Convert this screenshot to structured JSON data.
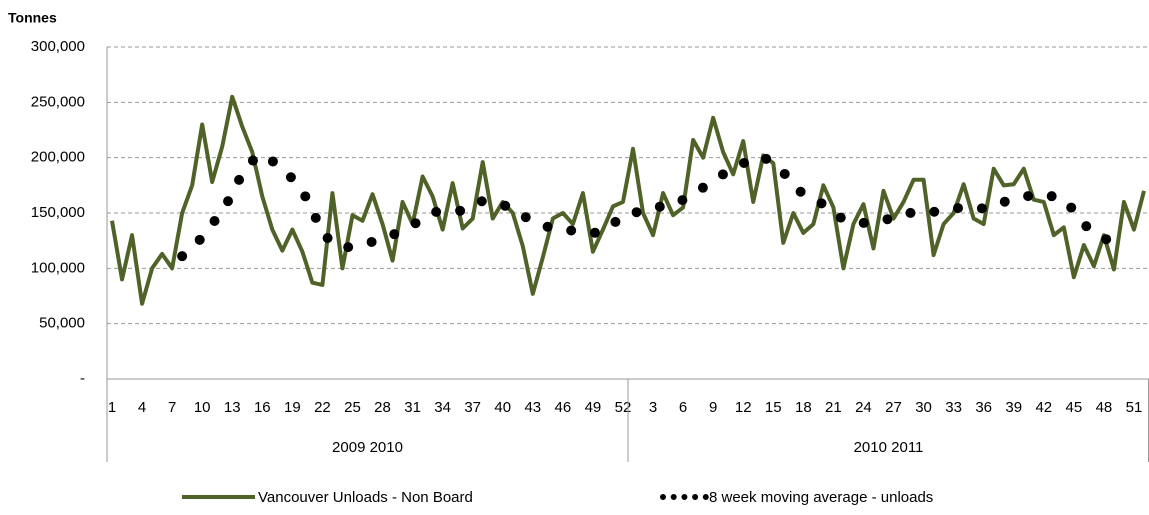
{
  "chart_data": {
    "type": "line",
    "y_label": "Tonnes",
    "ylim": [
      0,
      300000
    ],
    "yticks": [
      {
        "value": 0,
        "label": "-"
      },
      {
        "value": 50000,
        "label": "50,000"
      },
      {
        "value": 100000,
        "label": "100,000"
      },
      {
        "value": 150000,
        "label": "150,000"
      },
      {
        "value": 200000,
        "label": "200,000"
      },
      {
        "value": 250000,
        "label": "250,000"
      },
      {
        "value": 300000,
        "label": "300,000"
      }
    ],
    "grid": true,
    "legend": "bottom",
    "groups": [
      "2009 2010",
      "2010 2011"
    ],
    "categories": [
      "1",
      null,
      null,
      "4",
      null,
      null,
      "7",
      null,
      null,
      "10",
      null,
      null,
      "13",
      null,
      null,
      "16",
      null,
      null,
      "19",
      null,
      null,
      "22",
      null,
      null,
      "25",
      null,
      null,
      "28",
      null,
      null,
      "31",
      null,
      null,
      "34",
      null,
      null,
      "37",
      null,
      null,
      "40",
      null,
      null,
      "43",
      null,
      null,
      "46",
      null,
      null,
      "49",
      null,
      null,
      "52",
      null,
      null,
      "3",
      null,
      null,
      "6",
      null,
      null,
      "9",
      null,
      null,
      "12",
      null,
      null,
      "15",
      null,
      null,
      "18",
      null,
      null,
      "21",
      null,
      null,
      "24",
      null,
      null,
      "27",
      null,
      null,
      "30",
      null,
      null,
      "33",
      null,
      null,
      "36",
      null,
      null,
      "39",
      null,
      null,
      "42",
      null,
      null,
      "45",
      null,
      null,
      "48",
      null,
      null,
      "51",
      null
    ],
    "series": [
      {
        "name": "Vancouver Unloads - Non Board",
        "color": "#4f6228",
        "style": "solid",
        "values": [
          143000,
          90000,
          130000,
          68000,
          100000,
          113000,
          100000,
          150000,
          175000,
          230000,
          178000,
          210000,
          255000,
          228000,
          205000,
          165000,
          135000,
          116000,
          135000,
          115000,
          87000,
          85000,
          168000,
          100000,
          148000,
          143000,
          167000,
          140000,
          107000,
          160000,
          140000,
          183000,
          165000,
          135000,
          177000,
          136000,
          145000,
          196000,
          145000,
          160000,
          150000,
          120000,
          77000,
          110000,
          145000,
          150000,
          140000,
          168000,
          115000,
          135000,
          156000,
          160000,
          208000,
          150000,
          130000,
          168000,
          148000,
          155000,
          216000,
          200000,
          236000,
          205000,
          185000,
          215000,
          160000,
          202000,
          195000,
          123000,
          150000,
          132000,
          140000,
          175000,
          155000,
          100000,
          140000,
          158000,
          118000,
          170000,
          145000,
          160000,
          180000,
          180000,
          112000,
          140000,
          150000,
          176000,
          145000,
          140000,
          190000,
          175000,
          176000,
          190000,
          162000,
          160000,
          130000,
          137000,
          92000,
          121000,
          102000,
          130000,
          99000,
          160000,
          135000,
          170000
        ]
      },
      {
        "name": "8 week moving average - unloads",
        "color": "#000000",
        "style": "dotted",
        "values": [
          null,
          null,
          null,
          null,
          null,
          null,
          null,
          111000,
          119000,
          128000,
          140000,
          152000,
          167000,
          186000,
          197000,
          203000,
          197000,
          190000,
          181000,
          170000,
          153000,
          131000,
          124000,
          118000,
          120000,
          122000,
          124000,
          127000,
          130000,
          135000,
          139000,
          145000,
          151000,
          151000,
          152000,
          152000,
          157000,
          161000,
          159000,
          157000,
          155000,
          148000,
          142000,
          139000,
          136000,
          135000,
          134000,
          132000,
          132000,
          133000,
          140000,
          148000,
          150000,
          152000,
          155000,
          156000,
          157000,
          162000,
          168000,
          173000,
          179000,
          185000,
          190000,
          195000,
          198000,
          201000,
          194000,
          187000,
          175000,
          167000,
          162000,
          158000,
          151000,
          144000,
          143000,
          141000,
          142000,
          144000,
          145000,
          148000,
          151000,
          151000,
          151000,
          153000,
          154000,
          155000,
          155000,
          154000,
          157000,
          160000,
          162000,
          164000,
          167000,
          166000,
          165000,
          163000,
          152000,
          140000,
          132000,
          127000,
          124000,
          121000,
          null,
          null
        ]
      }
    ]
  }
}
